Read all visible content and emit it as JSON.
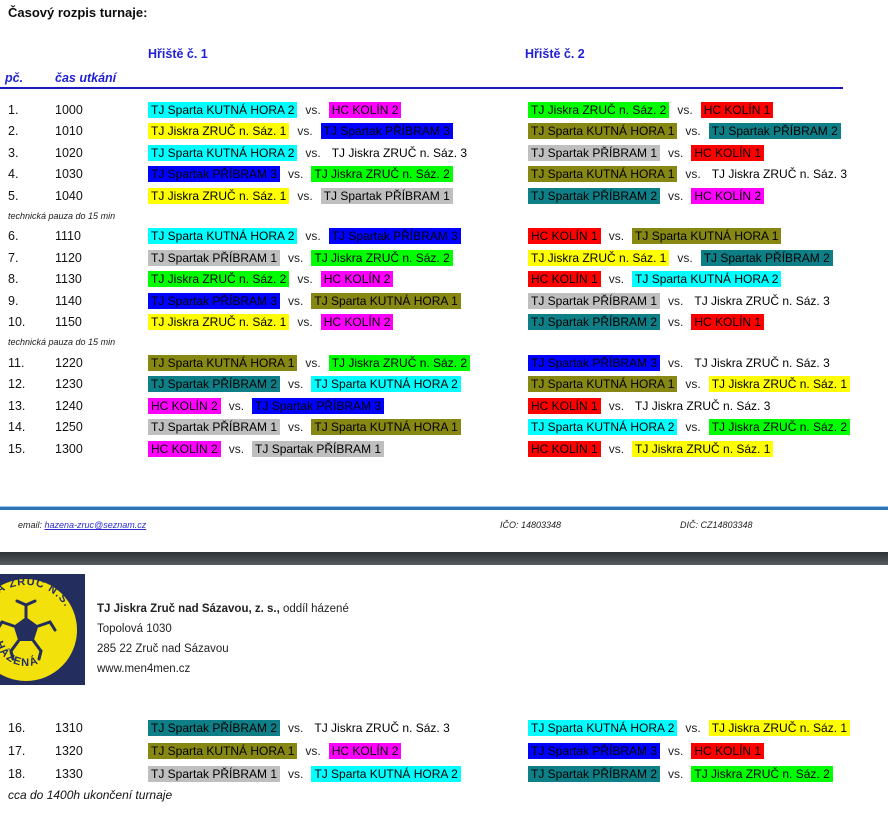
{
  "title": "Časový rozpis turnaje:",
  "header": {
    "field1": "Hřiště č. 1",
    "field2": "Hřiště č. 2",
    "num_col": "pč.",
    "time_col": "čas utkání"
  },
  "vs_label": "vs.",
  "teams": {
    "kh1": {
      "name": "TJ Sparta KUTNÁ HORA 1",
      "highlight": "#878714"
    },
    "kh2": {
      "name": "TJ Sparta KUTNÁ HORA 2",
      "highlight": "#00FFFF"
    },
    "ko1": {
      "name": "HC KOLÍN 1",
      "highlight": "#FF0000"
    },
    "ko2": {
      "name": "HC KOLÍN 2",
      "highlight": "#FF00FF"
    },
    "zr1": {
      "name": "TJ Jiskra ZRUČ n. Sáz. 1",
      "highlight": "#FFFF00"
    },
    "zr2": {
      "name": "TJ Jiskra ZRUČ n. Sáz. 2",
      "highlight": "#00FF00"
    },
    "zr3": {
      "name": "TJ Jiskra ZRUČ n. Sáz. 3",
      "highlight": "none"
    },
    "pr1": {
      "name": "TJ Spartak PŘÍBRAM 1",
      "highlight": "#BFBFBF"
    },
    "pr2": {
      "name": "TJ Spartak PŘÍBRAM 2",
      "highlight": "#0E7F86"
    },
    "pr3": {
      "name": "TJ Spartak PŘÍBRAM 3",
      "highlight": "#0000FF"
    }
  },
  "rows_page1": [
    {
      "type": "match",
      "num": "1.",
      "time": "1000",
      "f1": [
        "kh2",
        "ko2"
      ],
      "f2": [
        "zr2",
        "ko1"
      ]
    },
    {
      "type": "match",
      "num": "2.",
      "time": "1010",
      "f1": [
        "zr1",
        "pr3"
      ],
      "f2": [
        "kh1",
        "pr2"
      ]
    },
    {
      "type": "match",
      "num": "3.",
      "time": "1020",
      "f1": [
        "kh2",
        "zr3"
      ],
      "f2": [
        "pr1",
        "ko1"
      ]
    },
    {
      "type": "match",
      "num": "4.",
      "time": "1030",
      "f1": [
        "pr3",
        "zr2"
      ],
      "f2": [
        "kh1",
        "zr3"
      ]
    },
    {
      "type": "match",
      "num": "5.",
      "time": "1040",
      "f1": [
        "zr1",
        "pr1"
      ],
      "f2": [
        "pr2",
        "ko2"
      ]
    },
    {
      "type": "pause",
      "label": "technická pauza do 15 min"
    },
    {
      "type": "match",
      "num": "6.",
      "time": "1110",
      "f1": [
        "kh2",
        "pr3"
      ],
      "f2": [
        "ko1",
        "kh1"
      ]
    },
    {
      "type": "match",
      "num": "7.",
      "time": "1120",
      "f1": [
        "pr1",
        "zr2"
      ],
      "f2": [
        "zr1",
        "pr2"
      ]
    },
    {
      "type": "match",
      "num": "8.",
      "time": "1130",
      "f1": [
        "zr2",
        "ko2"
      ],
      "f2": [
        "ko1",
        "kh2"
      ]
    },
    {
      "type": "match",
      "num": "9.",
      "time": "1140",
      "f1": [
        "pr3",
        "kh1"
      ],
      "f2": [
        "pr1",
        "zr3"
      ]
    },
    {
      "type": "match",
      "num": "10.",
      "time": "1150",
      "f1": [
        "zr1",
        "ko2"
      ],
      "f2": [
        "pr2",
        "ko1"
      ]
    },
    {
      "type": "pause",
      "label": "technická pauza do 15 min"
    },
    {
      "type": "match",
      "num": "11.",
      "time": "1220",
      "f1": [
        "kh1",
        "zr2"
      ],
      "f2": [
        "pr3",
        "zr3"
      ]
    },
    {
      "type": "match",
      "num": "12.",
      "time": "1230",
      "f1": [
        "pr2",
        "kh2"
      ],
      "f2": [
        "kh1",
        "zr1"
      ]
    },
    {
      "type": "match",
      "num": "13.",
      "time": "1240",
      "f1": [
        "ko2",
        "pr3"
      ],
      "f2": [
        "ko1",
        "zr3"
      ]
    },
    {
      "type": "match",
      "num": "14.",
      "time": "1250",
      "f1": [
        "pr1",
        "kh1"
      ],
      "f2": [
        "kh2",
        "zr2"
      ]
    },
    {
      "type": "match",
      "num": "15.",
      "time": "1300",
      "f1": [
        "ko2",
        "pr1"
      ],
      "f2": [
        "ko1",
        "zr1"
      ]
    }
  ],
  "rows_page2": [
    {
      "type": "match",
      "num": "16.",
      "time": "1310",
      "f1": [
        "pr2",
        "zr3"
      ],
      "f2": [
        "kh2",
        "zr1"
      ]
    },
    {
      "type": "match",
      "num": "17.",
      "time": "1320",
      "f1": [
        "kh1",
        "ko2"
      ],
      "f2": [
        "pr3",
        "ko1"
      ]
    },
    {
      "type": "match",
      "num": "18.",
      "time": "1330",
      "f1": [
        "pr1",
        "kh2"
      ],
      "f2": [
        "pr2",
        "zr2"
      ]
    }
  ],
  "footer": {
    "email_label": "email:",
    "email": "hazena-zruc@seznam.cz",
    "ico": "IČO: 14803348",
    "dic": "DIČ: CZ14803348"
  },
  "club": {
    "name_bold": "TJ Jiskra Zruč nad Sázavou, z. s.,",
    "name_rest": " oddíl házené",
    "address_street": "Topolová 1030",
    "address_city": "285 22 Zruč nad Sázavou",
    "website": "www.men4men.cz",
    "logo_top": "JISKRA ZRUČ N.S.",
    "logo_bottom": "HÁZENÁ"
  },
  "closing_note": "cca do 1400h ukončení turnaje"
}
